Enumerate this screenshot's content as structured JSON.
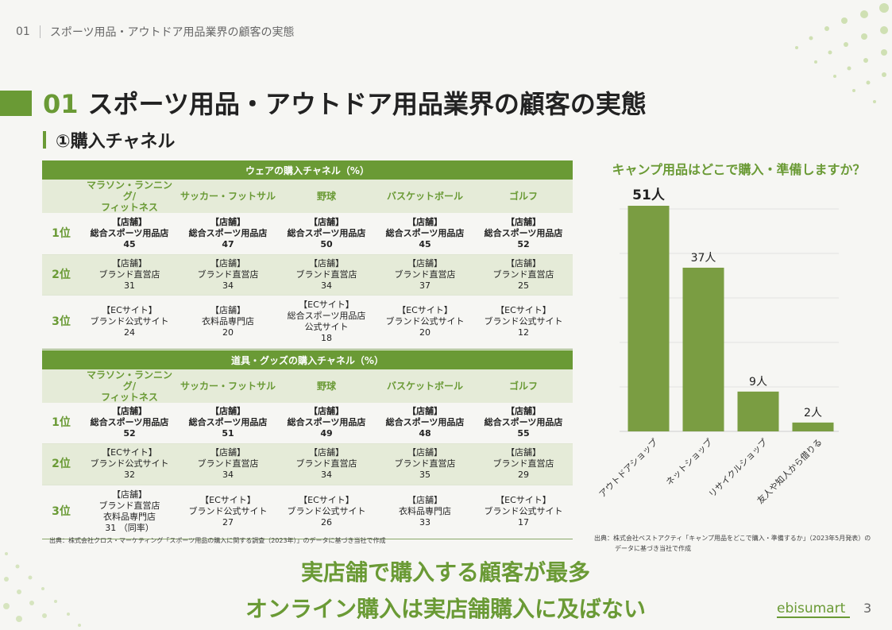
{
  "header": {
    "number": "01",
    "title": "スポーツ用品・アウトドア用品業界の顧客の実態"
  },
  "slide": {
    "number": "01",
    "title": "スポーツ用品・アウトドア用品業界の顧客の実態",
    "subtitle": "①購入チャネル"
  },
  "columns": [
    "マラソン・ランニング/ フィットネス",
    "サッカー・フットサル",
    "野球",
    "バスケットボール",
    "ゴルフ"
  ],
  "table1": {
    "title": "ウェアの購入チャネル（%）",
    "rows": [
      {
        "rank": "1位",
        "cells": [
          [
            "【店舗】",
            "総合スポーツ用品店",
            "45"
          ],
          [
            "【店舗】",
            "総合スポーツ用品店",
            "47"
          ],
          [
            "【店舗】",
            "総合スポーツ用品店",
            "50"
          ],
          [
            "【店舗】",
            "総合スポーツ用品店",
            "45"
          ],
          [
            "【店舗】",
            "総合スポーツ用品店",
            "52"
          ]
        ]
      },
      {
        "rank": "2位",
        "cells": [
          [
            "【店舗】",
            "ブランド直営店",
            "31"
          ],
          [
            "【店舗】",
            "ブランド直営店",
            "34"
          ],
          [
            "【店舗】",
            "ブランド直営店",
            "34"
          ],
          [
            "【店舗】",
            "ブランド直営店",
            "37"
          ],
          [
            "【店舗】",
            "ブランド直営店",
            "25"
          ]
        ]
      },
      {
        "rank": "3位",
        "cells": [
          [
            "【ECサイト】",
            "ブランド公式サイト",
            "24"
          ],
          [
            "【店舗】",
            "衣料品専門店",
            "20"
          ],
          [
            "【ECサイト】",
            "総合スポーツ用品店",
            "公式サイト",
            "18"
          ],
          [
            "【ECサイト】",
            "ブランド公式サイト",
            "20"
          ],
          [
            "【ECサイト】",
            "ブランド公式サイト",
            "12"
          ]
        ]
      }
    ]
  },
  "table2": {
    "title": "道具・グッズの購入チャネル（%）",
    "rows": [
      {
        "rank": "1位",
        "cells": [
          [
            "【店舗】",
            "総合スポーツ用品店",
            "52"
          ],
          [
            "【店舗】",
            "総合スポーツ用品店",
            "51"
          ],
          [
            "【店舗】",
            "総合スポーツ用品店",
            "49"
          ],
          [
            "【店舗】",
            "総合スポーツ用品店",
            "48"
          ],
          [
            "【店舗】",
            "総合スポーツ用品店",
            "55"
          ]
        ]
      },
      {
        "rank": "2位",
        "cells": [
          [
            "【ECサイト】",
            "ブランド公式サイト",
            "32"
          ],
          [
            "【店舗】",
            "ブランド直営店",
            "34"
          ],
          [
            "【店舗】",
            "ブランド直営店",
            "34"
          ],
          [
            "【店舗】",
            "ブランド直営店",
            "35"
          ],
          [
            "【店舗】",
            "ブランド直営店",
            "29"
          ]
        ]
      },
      {
        "rank": "3位",
        "cells": [
          [
            "【店舗】",
            "ブランド直営店",
            "衣料品専門店",
            "31 （同率）"
          ],
          [
            "【ECサイト】",
            "ブランド公式サイト",
            "27"
          ],
          [
            "【ECサイト】",
            "ブランド公式サイト",
            "26"
          ],
          [
            "【店舗】",
            "衣料品専門店",
            "33"
          ],
          [
            "【ECサイト】",
            "ブランド公式サイト",
            "17"
          ]
        ]
      }
    ]
  },
  "source_left": "出典：株式会社クロス・マーケティング「スポーツ用品の購入に関する調査（2023年）」のデータに基づき当社で作成",
  "source_right": [
    "出典：株式会社ベストアクティ「キャンプ用品をどこで購入・準備するか」（2023年5月発表）の",
    "データに基づき当社で作成"
  ],
  "chart_data": {
    "type": "bar",
    "title": "キャンプ用品はどこで購入・準備しますか？",
    "categories": [
      "アウトドアショップ",
      "ネットショップ",
      "リサイクルショップ",
      "友人や知人から借りる"
    ],
    "values": [
      51,
      37,
      9,
      2
    ],
    "data_labels": [
      "51人",
      "37人",
      "9人",
      "2人"
    ],
    "ylim": [
      0,
      51
    ],
    "grid": true,
    "bar_color": "#7a9d42"
  },
  "conclusion": [
    "実店舗で購入する顧客が最多",
    "オンライン購入は実店舗購入に及ばない"
  ],
  "logo": "ebisumart",
  "page_number": "3",
  "colors": {
    "accent": "#6a9a35",
    "band": "#e5ebd8"
  }
}
